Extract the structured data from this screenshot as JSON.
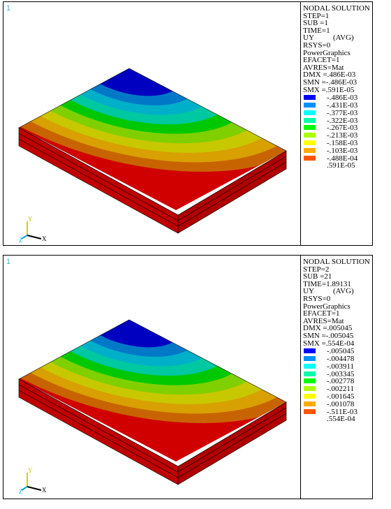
{
  "panels": [
    {
      "view_number": "1",
      "legend": {
        "title": "NODAL SOLUTION",
        "step": "STEP=1",
        "sub": "SUB =1",
        "time": "TIME=1",
        "uy": "UY          (AVG)",
        "rsys": "RSYS=0",
        "graphics": "PowerGraphics",
        "efacet": "EFACET=1",
        "avres": "AVRES=Mat",
        "dmx": "DMX =.486E-03",
        "smn": "SMN =-.486E-03",
        "smx": "SMX =.591E-05",
        "levels": [
          "-.486E-03",
          "-.431E-03",
          "-.377E-03",
          "-.322E-03",
          "-.267E-03",
          "-.213E-03",
          "-.158E-03",
          "-.103E-03",
          "-.488E-04",
          ".591E-05"
        ]
      },
      "triad": {
        "y": "Y",
        "z": "Z",
        "x": "X"
      }
    },
    {
      "view_number": "1",
      "legend": {
        "title": "NODAL SOLUTION",
        "step": "STEP=2",
        "sub": "SUB =21",
        "time": "TIME=1.89131",
        "uy": "UY          (AVG)",
        "rsys": "RSYS=0",
        "graphics": "PowerGraphics",
        "efacet": "EFACET=1",
        "avres": "AVRES=Mat",
        "dmx": "DMX =.005045",
        "smn": "SMN =-.005045",
        "smx": "SMX =.554E-04",
        "levels": [
          "-.005045",
          "-.004478",
          "-.003911",
          "-.003345",
          "-.002778",
          "-.002211",
          "-.001645",
          "-.001078",
          "-.511E-03",
          ".554E-04"
        ]
      },
      "triad": {
        "y": "Y",
        "z": "Z",
        "x": "X"
      }
    }
  ],
  "colors": {
    "contour": [
      "#0000c0",
      "#0078c8",
      "#00b0c8",
      "#00c8a0",
      "#00c800",
      "#80d000",
      "#c8c800",
      "#d8a000",
      "#c86400",
      "#d00000"
    ],
    "swatch": [
      "#0000ff",
      "#0090ff",
      "#00ffff",
      "#00ffaa",
      "#00ff00",
      "#aaff00",
      "#ffff00",
      "#ffaa00",
      "#ff5500",
      "#ff0000"
    ],
    "view_number": "#3fb6d8",
    "triad_y": "#e0e000",
    "triad_z": "#00b0e0",
    "triad_x": "#000000"
  }
}
